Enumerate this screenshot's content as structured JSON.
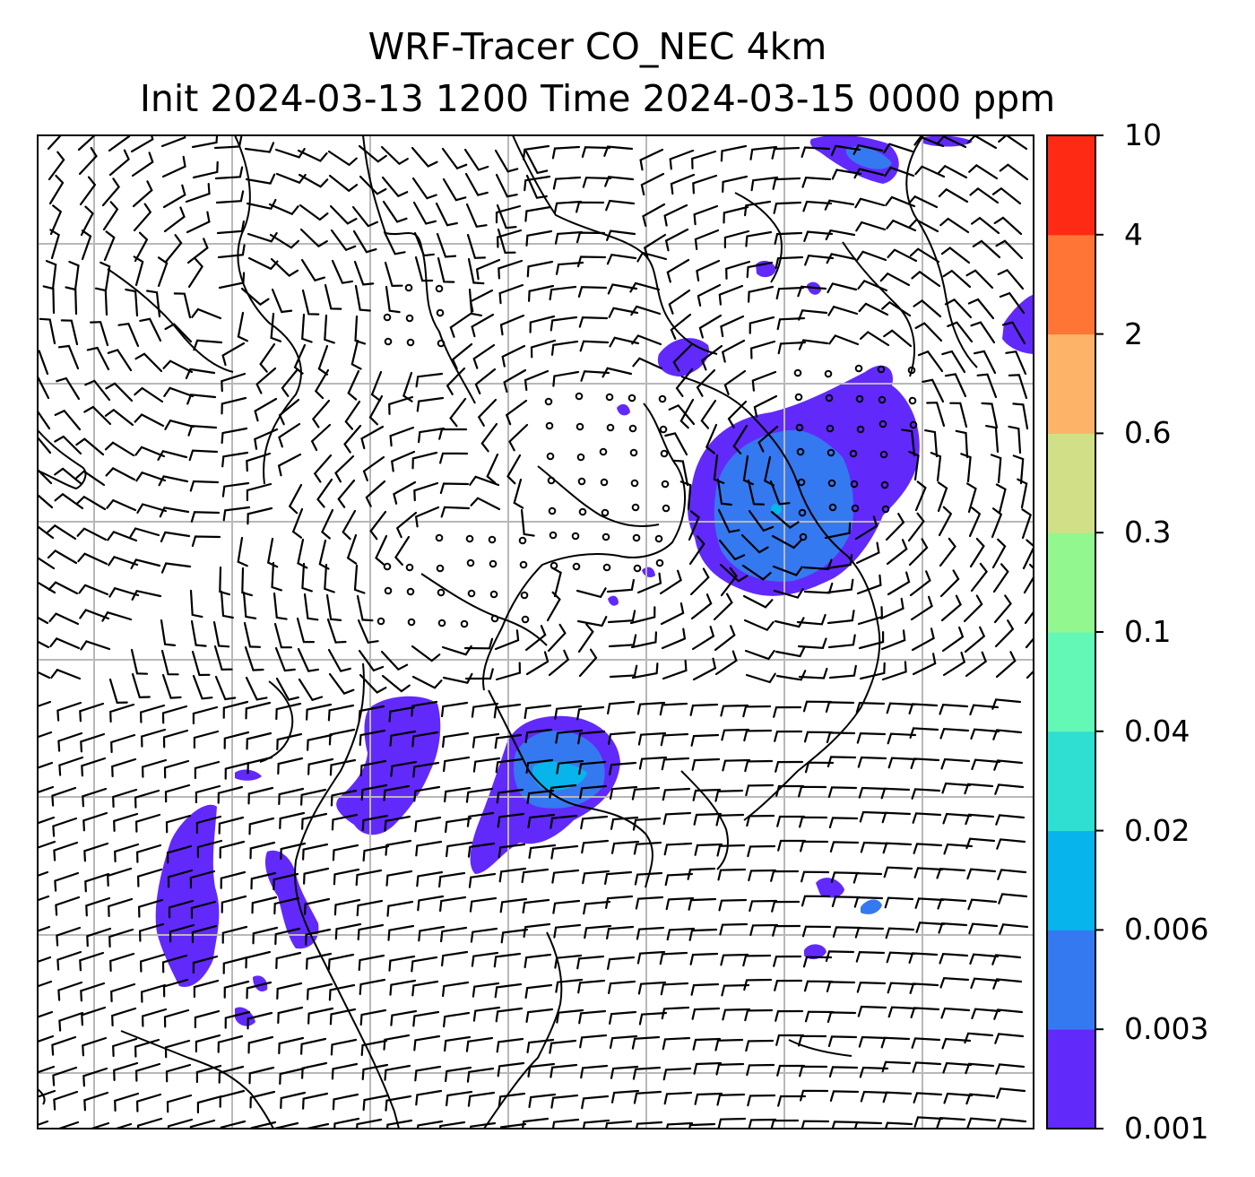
{
  "title": {
    "line1": "WRF-Tracer CO_NEC 4km",
    "line2": "Init 2024-03-13 1200 Time 2024-03-15 0000 ppm"
  },
  "colorbar": {
    "tick_labels": [
      "0.001",
      "0.003",
      "0.006",
      "0.02",
      "0.04",
      "0.1",
      "0.3",
      "0.6",
      "2",
      "4",
      "10"
    ],
    "colors": [
      "#6229fb",
      "#3579f0",
      "#07b4ec",
      "#2edfd2",
      "#63f8b6",
      "#92f78f",
      "#d1e086",
      "#fdb469",
      "#ff7536",
      "#ff2a14"
    ]
  },
  "map": {
    "background": "#ffffff",
    "grid_color": "#b8b8b8",
    "coastline_color": "#000000",
    "wind_barb_color": "#000000",
    "tracer_plumes": [
      {
        "region": "north-east",
        "level": "0.001-0.003"
      },
      {
        "region": "east-central",
        "level": "0.001-0.006"
      },
      {
        "region": "south-central",
        "level": "0.001-0.02"
      },
      {
        "region": "south-west",
        "level": "0.001-0.003"
      }
    ]
  }
}
